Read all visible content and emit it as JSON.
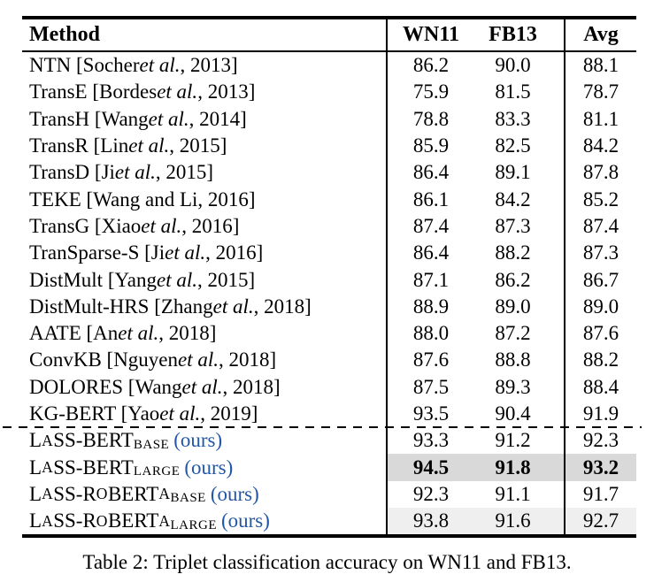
{
  "colors": {
    "ours_blue": "#2257a8",
    "highlight_strong": "#d9d9d9",
    "highlight_light": "#efefef",
    "rule_black": "#000000"
  },
  "table": {
    "headers": {
      "method": "Method",
      "wn11": "WN11",
      "fb13": "FB13",
      "avg": "Avg"
    },
    "caption": "Table 2: Triplet classification accuracy on WN11 and FB13.",
    "rows": [
      {
        "section": "baseline",
        "method_parts": [
          {
            "t": "NTN [Socher "
          },
          {
            "t": "et al.",
            "s": "i"
          },
          {
            "t": ", 2013]"
          }
        ],
        "wn11": "86.2",
        "fb13": "90.0",
        "avg": "88.1",
        "bold": false,
        "highlight": null
      },
      {
        "section": "baseline",
        "method_parts": [
          {
            "t": "TransE [Bordes "
          },
          {
            "t": "et al.",
            "s": "i"
          },
          {
            "t": ", 2013]"
          }
        ],
        "wn11": "75.9",
        "fb13": "81.5",
        "avg": "78.7",
        "bold": false,
        "highlight": null
      },
      {
        "section": "baseline",
        "method_parts": [
          {
            "t": "TransH [Wang "
          },
          {
            "t": "et al.",
            "s": "i"
          },
          {
            "t": ", 2014]"
          }
        ],
        "wn11": "78.8",
        "fb13": "83.3",
        "avg": "81.1",
        "bold": false,
        "highlight": null
      },
      {
        "section": "baseline",
        "method_parts": [
          {
            "t": "TransR [Lin "
          },
          {
            "t": "et al.",
            "s": "i"
          },
          {
            "t": ", 2015]"
          }
        ],
        "wn11": "85.9",
        "fb13": "82.5",
        "avg": "84.2",
        "bold": false,
        "highlight": null
      },
      {
        "section": "baseline",
        "method_parts": [
          {
            "t": "TransD [Ji "
          },
          {
            "t": "et al.",
            "s": "i"
          },
          {
            "t": ", 2015]"
          }
        ],
        "wn11": "86.4",
        "fb13": "89.1",
        "avg": "87.8",
        "bold": false,
        "highlight": null
      },
      {
        "section": "baseline",
        "method_parts": [
          {
            "t": "TEKE [Wang and Li, 2016]"
          }
        ],
        "wn11": "86.1",
        "fb13": "84.2",
        "avg": "85.2",
        "bold": false,
        "highlight": null
      },
      {
        "section": "baseline",
        "method_parts": [
          {
            "t": "TransG [Xiao "
          },
          {
            "t": "et al.",
            "s": "i"
          },
          {
            "t": ", 2016]"
          }
        ],
        "wn11": "87.4",
        "fb13": "87.3",
        "avg": "87.4",
        "bold": false,
        "highlight": null
      },
      {
        "section": "baseline",
        "method_parts": [
          {
            "t": "TranSparse-S [Ji "
          },
          {
            "t": "et al.",
            "s": "i"
          },
          {
            "t": ", 2016]"
          }
        ],
        "wn11": "86.4",
        "fb13": "88.2",
        "avg": "87.3",
        "bold": false,
        "highlight": null
      },
      {
        "section": "baseline",
        "method_parts": [
          {
            "t": "DistMult [Yang "
          },
          {
            "t": "et al.",
            "s": "i"
          },
          {
            "t": ", 2015]"
          }
        ],
        "wn11": "87.1",
        "fb13": "86.2",
        "avg": "86.7",
        "bold": false,
        "highlight": null
      },
      {
        "section": "baseline",
        "method_parts": [
          {
            "t": "DistMult-HRS [Zhang "
          },
          {
            "t": "et al.",
            "s": "i"
          },
          {
            "t": ", 2018]"
          }
        ],
        "wn11": "88.9",
        "fb13": "89.0",
        "avg": "89.0",
        "bold": false,
        "highlight": null
      },
      {
        "section": "baseline",
        "method_parts": [
          {
            "t": "AATE [An "
          },
          {
            "t": "et al.",
            "s": "i"
          },
          {
            "t": ", 2018]"
          }
        ],
        "wn11": "88.0",
        "fb13": "87.2",
        "avg": "87.6",
        "bold": false,
        "highlight": null
      },
      {
        "section": "baseline",
        "method_parts": [
          {
            "t": "ConvKB [Nguyen "
          },
          {
            "t": "et al.",
            "s": "i"
          },
          {
            "t": ", 2018]"
          }
        ],
        "wn11": "87.6",
        "fb13": "88.8",
        "avg": "88.2",
        "bold": false,
        "highlight": null
      },
      {
        "section": "baseline",
        "method_parts": [
          {
            "t": "DOLORES [Wang "
          },
          {
            "t": "et al.",
            "s": "i"
          },
          {
            "t": ", 2018]"
          }
        ],
        "wn11": "87.5",
        "fb13": "89.3",
        "avg": "88.4",
        "bold": false,
        "highlight": null
      },
      {
        "section": "baseline",
        "method_parts": [
          {
            "t": "KG-BERT [Yao "
          },
          {
            "t": "et al.",
            "s": "i"
          },
          {
            "t": ", 2019]"
          }
        ],
        "wn11": "93.5",
        "fb13": "90.4",
        "avg": "91.9",
        "bold": false,
        "highlight": null
      },
      {
        "section": "ours",
        "method_parts": [
          {
            "t": "L"
          },
          {
            "t": "A",
            "s": "sc"
          },
          {
            "t": "SS-BERT"
          },
          {
            "t": "BASE",
            "s": "sub"
          },
          {
            "t": "(ours)",
            "s": "ours"
          }
        ],
        "wn11": "93.3",
        "fb13": "91.2",
        "avg": "92.3",
        "bold": false,
        "highlight": null
      },
      {
        "section": "ours",
        "method_parts": [
          {
            "t": "L"
          },
          {
            "t": "A",
            "s": "sc"
          },
          {
            "t": "SS-BERT"
          },
          {
            "t": "LARGE",
            "s": "sub"
          },
          {
            "t": "(ours)",
            "s": "ours"
          }
        ],
        "wn11": "94.5",
        "fb13": "91.8",
        "avg": "93.2",
        "bold": true,
        "highlight": "strong"
      },
      {
        "section": "ours",
        "method_parts": [
          {
            "t": "L"
          },
          {
            "t": "A",
            "s": "sc"
          },
          {
            "t": "SS-R"
          },
          {
            "t": "O",
            "s": "sc"
          },
          {
            "t": "BERT"
          },
          {
            "t": "A",
            "s": "sc"
          },
          {
            "t": "BASE",
            "s": "sub"
          },
          {
            "t": "(ours)",
            "s": "ours"
          }
        ],
        "wn11": "92.3",
        "fb13": "91.1",
        "avg": "91.7",
        "bold": false,
        "highlight": null
      },
      {
        "section": "ours",
        "method_parts": [
          {
            "t": "L"
          },
          {
            "t": "A",
            "s": "sc"
          },
          {
            "t": "SS-R"
          },
          {
            "t": "O",
            "s": "sc"
          },
          {
            "t": "BERT"
          },
          {
            "t": "A",
            "s": "sc"
          },
          {
            "t": "LARGE",
            "s": "sub"
          },
          {
            "t": "(ours)",
            "s": "ours"
          }
        ],
        "wn11": "93.8",
        "fb13": "91.6",
        "avg": "92.7",
        "bold": false,
        "highlight": "light"
      }
    ]
  }
}
